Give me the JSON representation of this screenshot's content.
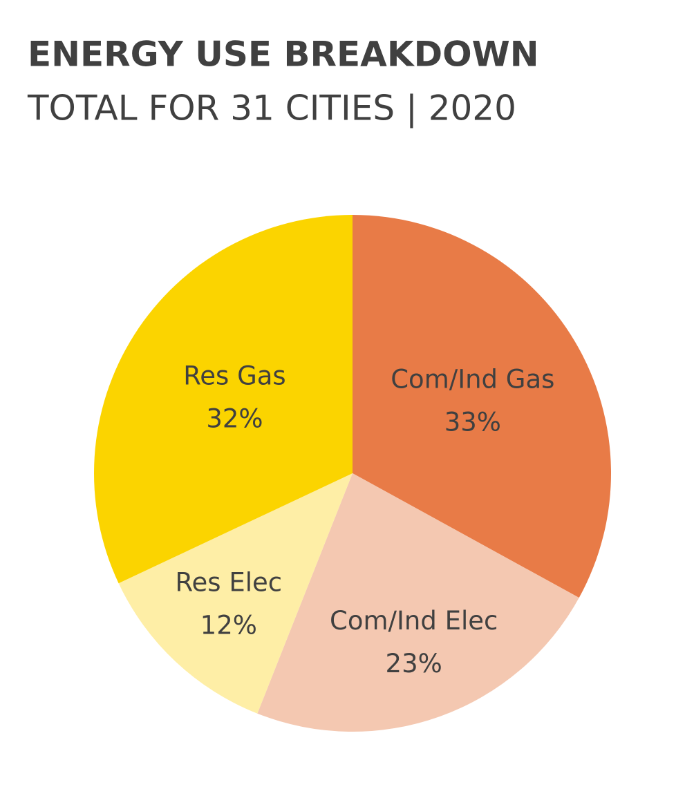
{
  "chart_data": {
    "type": "pie",
    "title": "ENERGY USE BREAKDOWN",
    "subtitle": "TOTAL FOR 31 CITIES | 2020",
    "categories": [
      "Com/Ind Gas",
      "Com/Ind Elec",
      "Res Elec",
      "Res Gas"
    ],
    "values": [
      33,
      23,
      12,
      32
    ],
    "value_labels": [
      "33%",
      "23%",
      "12%",
      "32%"
    ],
    "colors": [
      "#e87b47",
      "#f4c8b1",
      "#feeea6",
      "#fbd400"
    ]
  }
}
